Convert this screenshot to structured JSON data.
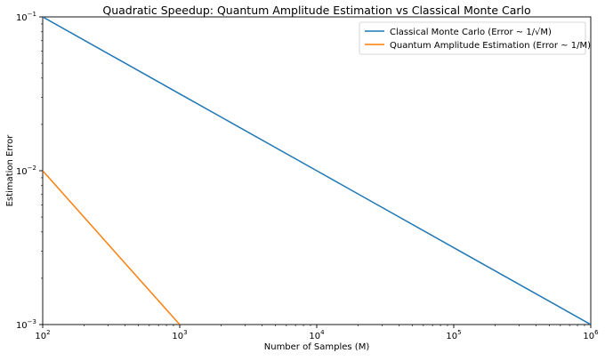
{
  "chart_data": {
    "type": "line",
    "title": "Quadratic Speedup: Quantum Amplitude Estimation vs Classical Monte Carlo",
    "xlabel": "Number of Samples (M)",
    "ylabel": "Estimation Error",
    "xscale": "log",
    "yscale": "log",
    "xlim": [
      100,
      1000000
    ],
    "ylim": [
      0.001,
      0.1
    ],
    "x_ticks": [
      {
        "value": 100,
        "base": "10",
        "exp": "2"
      },
      {
        "value": 1000,
        "base": "10",
        "exp": "3"
      },
      {
        "value": 10000,
        "base": "10",
        "exp": "4"
      },
      {
        "value": 100000,
        "base": "10",
        "exp": "5"
      },
      {
        "value": 1000000,
        "base": "10",
        "exp": "6"
      }
    ],
    "y_ticks": [
      {
        "value": 0.001,
        "base": "10",
        "exp": "−3"
      },
      {
        "value": 0.01,
        "base": "10",
        "exp": "−2"
      },
      {
        "value": 0.1,
        "base": "10",
        "exp": "−1"
      }
    ],
    "grid": false,
    "legend_position": "top-right",
    "series": [
      {
        "name": "Classical Monte Carlo  (Error ~ 1/√M)",
        "color": "#1f77b4",
        "x": [
          100,
          1000,
          10000,
          100000,
          1000000
        ],
        "values": [
          0.1,
          0.0316,
          0.01,
          0.00316,
          0.001
        ]
      },
      {
        "name": "Quantum Amplitude Estimation  (Error ~ 1/M)",
        "color": "#ff7f0e",
        "x": [
          100,
          316,
          1000
        ],
        "values": [
          0.01,
          0.00316,
          0.001
        ]
      }
    ]
  }
}
